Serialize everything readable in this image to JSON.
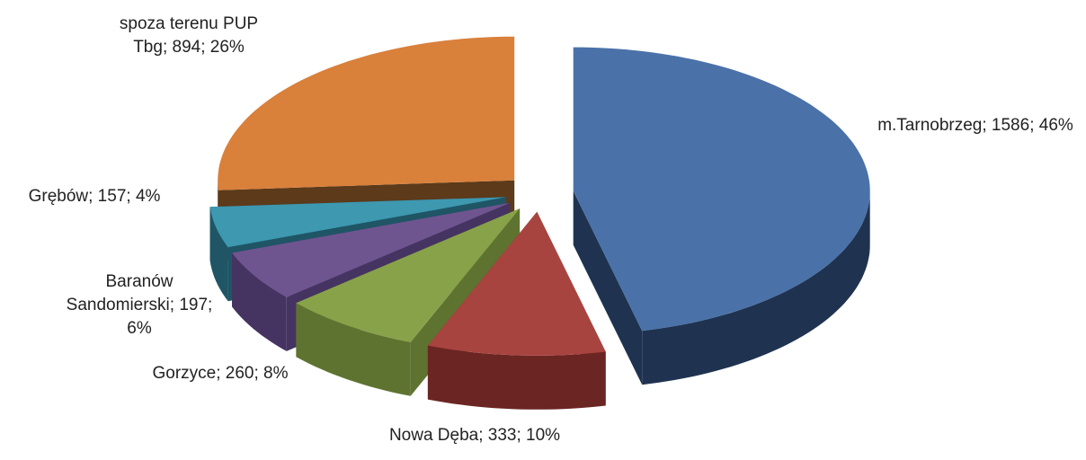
{
  "chart_data": {
    "type": "pie3d",
    "values": [
      1586,
      333,
      260,
      197,
      157,
      894
    ],
    "value_labels": [
      "m.Tarnobrzeg; 1586; 46%",
      "Nowa Dęba; 333; 10%",
      "Gorzyce; 260; 8%",
      "Baranów Sandomierski; 197; 6%",
      "Grębów; 157; 4%",
      "spoza terenu PUP Tbg; 894; 26%"
    ],
    "colors": [
      "#4a72a8",
      "#a84440",
      "#88a24a",
      "#6f5590",
      "#3d98b0",
      "#d9803b"
    ],
    "side_colors": [
      "#1f3350",
      "#6b2523",
      "#5f7331",
      "#453461",
      "#1f5565",
      "#5c3a1a"
    ]
  }
}
